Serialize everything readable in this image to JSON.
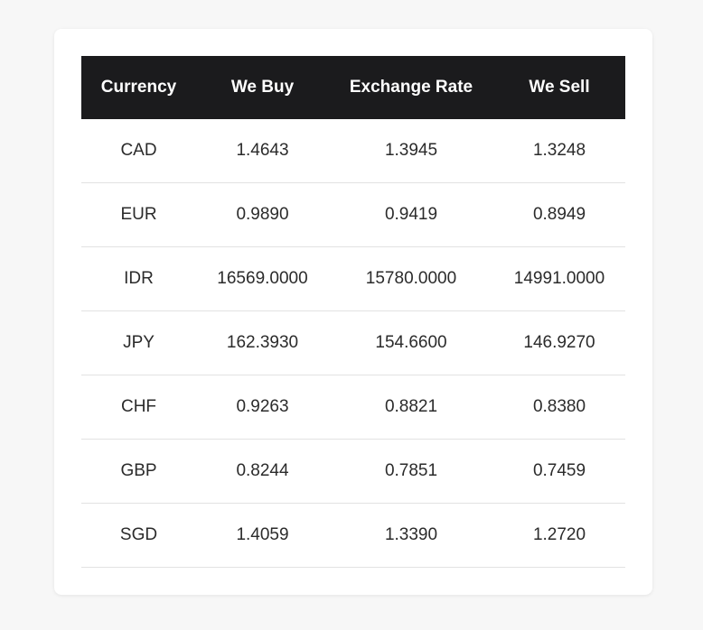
{
  "table": {
    "headers": [
      "Currency",
      "We Buy",
      "Exchange Rate",
      "We Sell"
    ],
    "rows": [
      [
        "CAD",
        "1.4643",
        "1.3945",
        "1.3248"
      ],
      [
        "EUR",
        "0.9890",
        "0.9419",
        "0.8949"
      ],
      [
        "IDR",
        "16569.0000",
        "15780.0000",
        "14991.0000"
      ],
      [
        "JPY",
        "162.3930",
        "154.6600",
        "146.9270"
      ],
      [
        "CHF",
        "0.9263",
        "0.8821",
        "0.8380"
      ],
      [
        "GBP",
        "0.8244",
        "0.7851",
        "0.7459"
      ],
      [
        "SGD",
        "1.4059",
        "1.3390",
        "1.2720"
      ]
    ]
  },
  "colors": {
    "header_bg": "#1b1b1d",
    "header_text": "#ffffff",
    "row_border": "#e2e2e2",
    "card_bg": "#ffffff",
    "page_bg": "#f7f7f7"
  }
}
